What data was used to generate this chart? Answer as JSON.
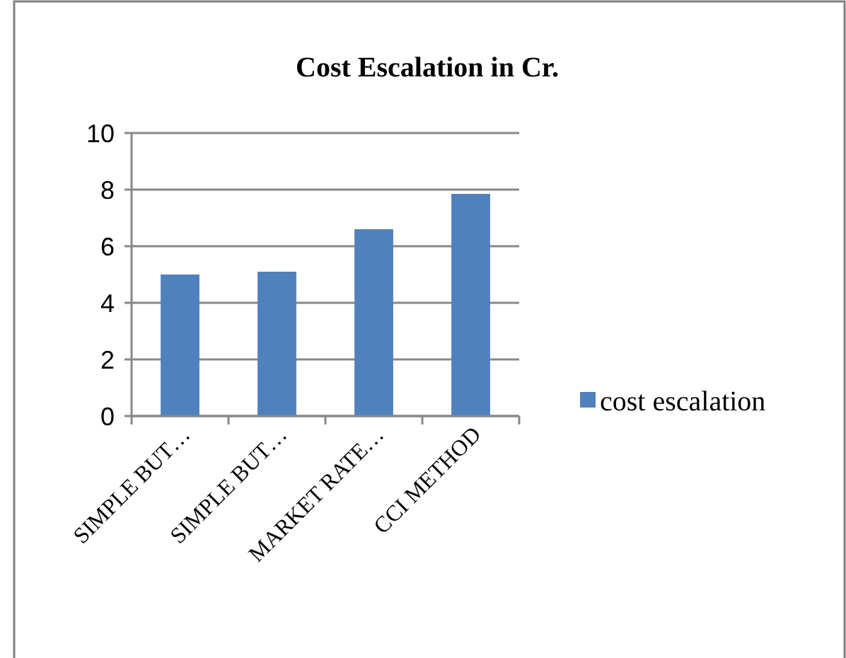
{
  "chart_data": {
    "type": "bar",
    "title": "Cost Escalation in Cr.",
    "categories": [
      "SIMPLE BUT…",
      "SIMPLE BUT…",
      "MARKET RATE…",
      "CCI METHOD"
    ],
    "series": [
      {
        "name": "cost escalation",
        "color": "#4f81bd",
        "values": [
          5.0,
          5.1,
          6.6,
          7.85
        ]
      }
    ],
    "ylim": [
      0,
      10
    ],
    "yticks": [
      0,
      2,
      4,
      6,
      8,
      10
    ],
    "grid": "y",
    "legend": "right"
  }
}
